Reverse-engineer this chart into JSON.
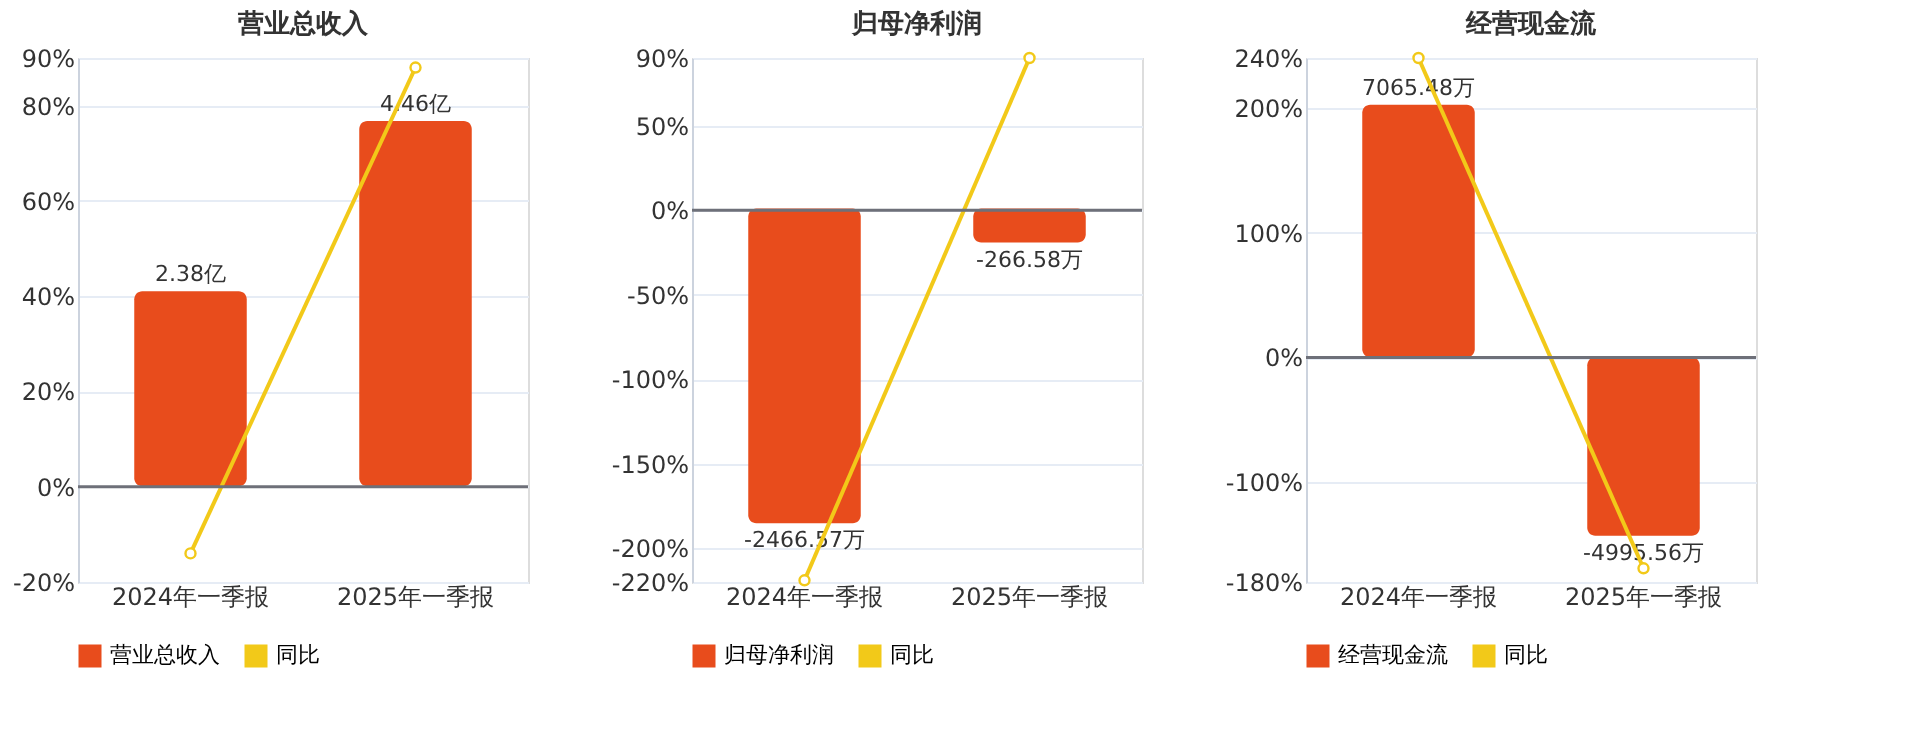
{
  "chart_data": [
    {
      "type": "bar",
      "title": "营业总收入",
      "categories": [
        "2024年一季报",
        "2025年一季报"
      ],
      "ylim": [
        -20,
        90
      ],
      "yticks": [
        {
          "value": -20,
          "label": "-20%"
        },
        {
          "value": 0,
          "label": "0%"
        },
        {
          "value": 20,
          "label": "20%"
        },
        {
          "value": 40,
          "label": "40%"
        },
        {
          "value": 60,
          "label": "60%"
        },
        {
          "value": 80,
          "label": "80%"
        },
        {
          "value": 90,
          "label": "90%"
        }
      ],
      "y2lim": [
        -1.17,
        5.23
      ],
      "grid": "y",
      "legend": "bottom",
      "series": [
        {
          "name": "营业总收入",
          "axis": "y2",
          "color": "#e84c1c",
          "values": [
            2.38,
            4.46
          ],
          "value_labels": [
            "2.38亿",
            "4.46亿"
          ]
        },
        {
          "name": "同比",
          "type": "line",
          "color": "#f2c919",
          "marker": "circle",
          "values": [
            -14,
            88
          ]
        }
      ]
    },
    {
      "type": "bar",
      "title": "归母净利润",
      "categories": [
        "2024年一季报",
        "2025年一季报"
      ],
      "ylim": [
        -220,
        90
      ],
      "yticks": [
        {
          "value": -220,
          "label": "-220%"
        },
        {
          "value": -200,
          "label": "-200%"
        },
        {
          "value": -150,
          "label": "-150%"
        },
        {
          "value": -100,
          "label": "-100%"
        },
        {
          "value": -50,
          "label": "-50%"
        },
        {
          "value": 0,
          "label": "0%"
        },
        {
          "value": 50,
          "label": "50%"
        },
        {
          "value": 90,
          "label": "90%"
        }
      ],
      "y2lim": [
        -2928,
        1181
      ],
      "grid": "y",
      "legend": "bottom",
      "series": [
        {
          "name": "归母净利润",
          "axis": "y2",
          "color": "#e84c1c",
          "values": [
            -2466.57,
            -266.58
          ],
          "value_labels": [
            "-2466.57万",
            "-266.58万"
          ]
        },
        {
          "name": "同比",
          "type": "line",
          "color": "#f2c919",
          "marker": "circle",
          "values": [
            -219,
            90
          ]
        }
      ]
    },
    {
      "type": "bar",
      "title": "经营现金流",
      "categories": [
        "2024年一季报",
        "2025年一季报"
      ],
      "ylim": [
        -180,
        240
      ],
      "yticks": [
        {
          "value": -180,
          "label": "-180%"
        },
        {
          "value": -100,
          "label": "-100%"
        },
        {
          "value": 0,
          "label": "0%"
        },
        {
          "value": 100,
          "label": "100%"
        },
        {
          "value": 200,
          "label": "200%"
        },
        {
          "value": 240,
          "label": "240%"
        }
      ],
      "y2lim": [
        -6290,
        8372
      ],
      "grid": "y",
      "legend": "bottom",
      "series": [
        {
          "name": "经营现金流",
          "axis": "y2",
          "color": "#e84c1c",
          "values": [
            7065.48,
            -4995.56
          ],
          "value_labels": [
            "7065.48万",
            "-4995.56万"
          ]
        },
        {
          "name": "同比",
          "type": "line",
          "color": "#f2c919",
          "marker": "circle",
          "values": [
            240,
            -169
          ]
        }
      ]
    }
  ]
}
